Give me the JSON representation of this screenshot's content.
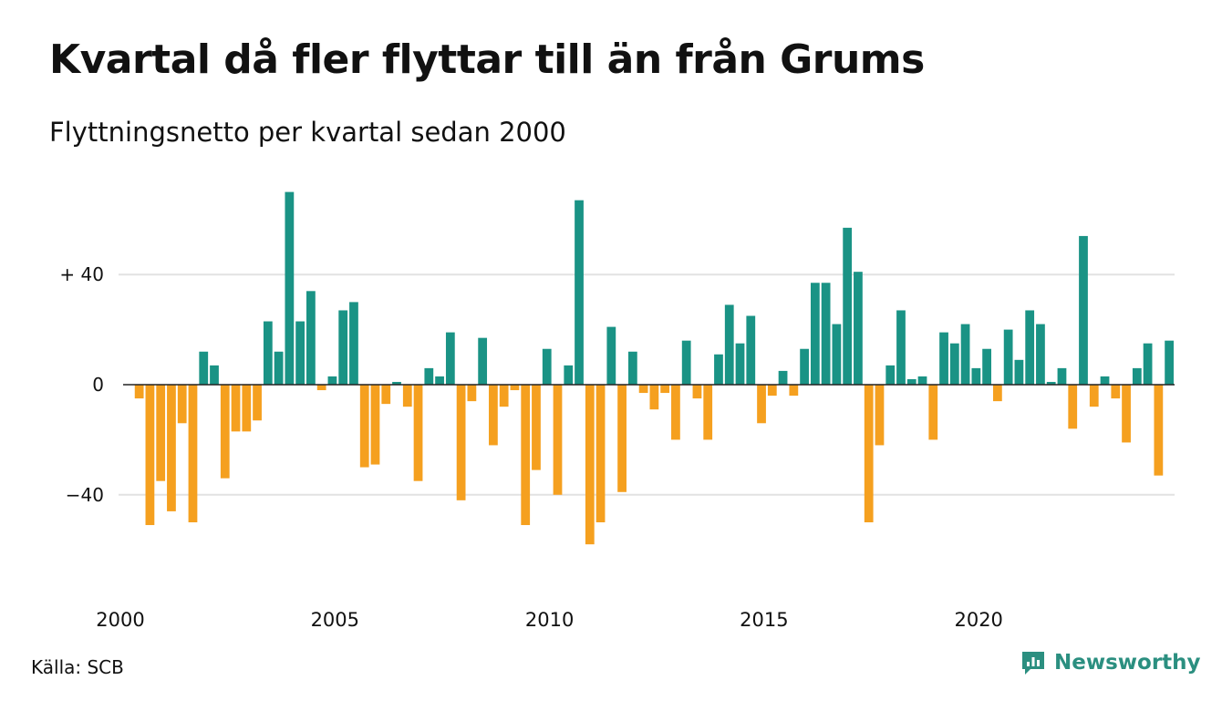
{
  "title": "Kvartal då fler flyttar till än från Grums",
  "subtitle": "Flyttningsnetto per kvartal sedan 2000",
  "source": "Källa: SCB",
  "brand": {
    "name": "Newsworthy",
    "icon": "newsworthy-logo-icon"
  },
  "colors": {
    "positive": "#1a9385",
    "negative": "#f5a01f",
    "grid": "#e2e2e2",
    "zero": "#222222",
    "text": "#111111",
    "brand": "#2b8f80"
  },
  "chart_data": {
    "type": "bar",
    "first_year": 2000,
    "ylim": [
      -60,
      72
    ],
    "yticks": [
      40,
      0,
      -40
    ],
    "ytick_labels": [
      "+ 40",
      "0",
      "−40"
    ],
    "xtick_labels": [
      "2000",
      "2005",
      "2010",
      "2015",
      "2020"
    ],
    "grid": true,
    "values": [
      0,
      -5,
      -51,
      -35,
      -46,
      -14,
      -50,
      12,
      7,
      -34,
      -17,
      -17,
      -13,
      23,
      12,
      70,
      23,
      34,
      -2,
      3,
      27,
      30,
      -30,
      -29,
      -7,
      1,
      -8,
      -35,
      6,
      3,
      19,
      -42,
      -6,
      17,
      -22,
      -8,
      -2,
      -51,
      -31,
      13,
      -40,
      7,
      67,
      -58,
      -50,
      21,
      -39,
      12,
      -3,
      -9,
      -3,
      -20,
      16,
      -5,
      -20,
      11,
      29,
      15,
      25,
      -14,
      -4,
      5,
      -4,
      13,
      37,
      37,
      22,
      57,
      41,
      -50,
      -22,
      7,
      27,
      2,
      3,
      -20,
      19,
      15,
      22,
      6,
      13,
      -6,
      20,
      9,
      27,
      22,
      1,
      6,
      -16,
      54,
      -8,
      3,
      -5,
      -21,
      6,
      15,
      -33,
      16
    ]
  }
}
